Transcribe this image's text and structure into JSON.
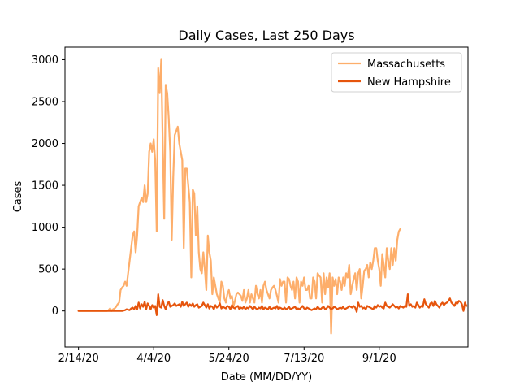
{
  "chart_data": {
    "type": "line",
    "title": "Daily Cases, Last 250 Days",
    "xlabel": "Date (MM/DD/YY)",
    "ylabel": "Cases",
    "x_start": "2/14/20",
    "x_end": "10/21/20",
    "xlim": [
      "2/5/20",
      "10/30/20"
    ],
    "ylim": [
      -430,
      3150
    ],
    "xticks": [
      "2/14/20",
      "4/4/20",
      "5/24/20",
      "7/13/20",
      "9/1/20"
    ],
    "yticks": [
      0,
      500,
      1000,
      1500,
      2000,
      2500,
      3000
    ],
    "grid": false,
    "legend_position": "top-right",
    "series": [
      {
        "name": "Massachusetts",
        "color": "#fdae6b",
        "values": [
          0,
          0,
          0,
          0,
          0,
          0,
          0,
          0,
          0,
          0,
          0,
          0,
          0,
          0,
          0,
          0,
          0,
          0,
          0,
          0,
          10,
          30,
          0,
          20,
          30,
          50,
          80,
          100,
          250,
          280,
          300,
          350,
          300,
          450,
          600,
          750,
          900,
          950,
          700,
          900,
          1250,
          1300,
          1350,
          1300,
          1500,
          1300,
          1400,
          1900,
          2000,
          1900,
          2050,
          1800,
          950,
          2900,
          2600,
          3000,
          2000,
          1100,
          2700,
          2600,
          2300,
          1900,
          850,
          1600,
          2100,
          2150,
          2200,
          2000,
          1900,
          1800,
          750,
          1700,
          1700,
          1500,
          1300,
          400,
          1450,
          1400,
          900,
          1250,
          700,
          500,
          450,
          700,
          500,
          250,
          900,
          700,
          600,
          200,
          400,
          300,
          200,
          150,
          100,
          350,
          300,
          150,
          100,
          200,
          250,
          150,
          180,
          50,
          120,
          200,
          220,
          200,
          180,
          120,
          250,
          100,
          150,
          250,
          100,
          200,
          150,
          100,
          300,
          200,
          150,
          250,
          100,
          300,
          350,
          250,
          200,
          150,
          250,
          280,
          300,
          250,
          180,
          100,
          380,
          300,
          350,
          350,
          100,
          400,
          380,
          300,
          250,
          350,
          150,
          400,
          350,
          100,
          350,
          300,
          400,
          250,
          250,
          300,
          150,
          150,
          400,
          350,
          150,
          450,
          420,
          400,
          100,
          450,
          200,
          400,
          280,
          450,
          -270,
          400,
          300,
          380,
          200,
          400,
          350,
          250,
          400,
          300,
          450,
          400,
          550,
          200,
          300,
          380,
          450,
          250,
          450,
          500,
          150,
          300,
          480,
          500,
          550,
          400,
          580,
          500,
          600,
          750,
          750,
          600,
          500,
          300,
          680,
          550,
          400,
          750,
          600,
          500,
          750,
          550,
          750,
          600,
          850,
          950,
          980
        ]
      },
      {
        "name": "New Hampshire",
        "color": "#e6550d",
        "values": [
          0,
          0,
          0,
          0,
          0,
          0,
          0,
          0,
          0,
          0,
          0,
          0,
          0,
          0,
          0,
          0,
          0,
          0,
          0,
          0,
          0,
          0,
          0,
          0,
          0,
          0,
          0,
          0,
          0,
          0,
          5,
          10,
          20,
          15,
          10,
          30,
          40,
          20,
          60,
          20,
          100,
          30,
          80,
          50,
          110,
          20,
          90,
          60,
          20,
          70,
          40,
          60,
          -50,
          200,
          50,
          40,
          130,
          60,
          20,
          80,
          110,
          50,
          60,
          70,
          90,
          60,
          70,
          80,
          50,
          110,
          60,
          80,
          100,
          50,
          80,
          60,
          90,
          50,
          70,
          80,
          40,
          50,
          60,
          100,
          70,
          40,
          80,
          30,
          60,
          50,
          20,
          70,
          40,
          60,
          90,
          30,
          50,
          40,
          30,
          60,
          50,
          20,
          70,
          40,
          30,
          50,
          60,
          20,
          40,
          30,
          50,
          20,
          40,
          30,
          60,
          40,
          20,
          50,
          30,
          20,
          40,
          30,
          60,
          20,
          40,
          30,
          20,
          50,
          20,
          30,
          40,
          30,
          60,
          20,
          40,
          30,
          20,
          40,
          20,
          30,
          50,
          20,
          30,
          40,
          50,
          20,
          30,
          20,
          40,
          60,
          30,
          20,
          40,
          30,
          20,
          10,
          20,
          30,
          20,
          50,
          30,
          20,
          40,
          50,
          20,
          30,
          60,
          40,
          20,
          30,
          50,
          40,
          20,
          30,
          40,
          30,
          50,
          20,
          30,
          40,
          60,
          50,
          40,
          60,
          40,
          -10,
          100,
          50,
          60,
          30,
          40,
          20,
          60,
          50,
          40,
          30,
          20,
          60,
          40,
          70,
          50,
          60,
          40,
          30,
          100,
          60,
          50,
          40,
          60,
          80,
          60,
          40,
          50,
          30,
          60,
          50,
          40,
          60,
          50,
          200,
          60,
          80,
          50,
          60,
          40,
          100,
          70,
          40,
          60,
          50,
          140,
          80,
          60,
          40,
          90,
          100,
          60,
          120,
          80,
          60,
          40,
          80,
          100,
          70,
          90,
          100,
          120,
          150,
          100,
          80,
          60,
          100,
          90,
          120,
          110,
          80,
          0,
          100,
          60
        ]
      }
    ]
  }
}
